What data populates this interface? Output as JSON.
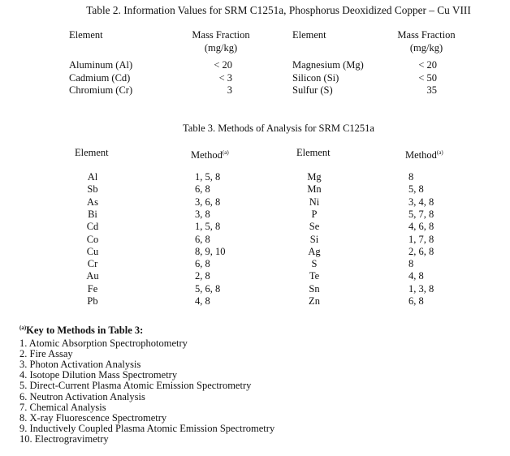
{
  "table2": {
    "title": "Table 2.  Information Values for SRM C1251a, Phosphorus Deoxidized Copper – Cu VIII",
    "col_element": "Element",
    "col_mass": "Mass Fraction",
    "col_unit": "(mg/kg)",
    "left": [
      {
        "element": "Aluminum (Al)",
        "value": "< 20"
      },
      {
        "element": "Cadmium (Cd)",
        "value": "< 3"
      },
      {
        "element": "Chromium (Cr)",
        "value": "3"
      }
    ],
    "right": [
      {
        "element": "Magnesium (Mg)",
        "value": "< 20"
      },
      {
        "element": "Silicon (Si)",
        "value": "< 50"
      },
      {
        "element": "Sulfur (S)",
        "value": "35"
      }
    ]
  },
  "table3": {
    "title": "Table 3.  Methods of Analysis for SRM C1251a",
    "col_element": "Element",
    "col_method": "Method",
    "footnote_mark": "(a)",
    "left": [
      [
        "Al",
        "1, 5, 8"
      ],
      [
        "Sb",
        "6, 8"
      ],
      [
        "As",
        "3, 6, 8"
      ],
      [
        "Bi",
        "3, 8"
      ],
      [
        "Cd",
        "1, 5, 8"
      ],
      [
        "Co",
        "6, 8"
      ],
      [
        "Cu",
        "8, 9, 10"
      ],
      [
        "Cr",
        "6, 8"
      ],
      [
        "Au",
        "2, 8"
      ],
      [
        "Fe",
        "5, 6, 8"
      ],
      [
        "Pb",
        "4, 8"
      ]
    ],
    "right": [
      [
        "Mg",
        "8"
      ],
      [
        "Mn",
        "5, 8"
      ],
      [
        "Ni",
        "3, 4, 8"
      ],
      [
        "P",
        "5, 7, 8"
      ],
      [
        "Se",
        "4, 6, 8"
      ],
      [
        "Si",
        "1, 7, 8"
      ],
      [
        "Ag",
        "2, 6, 8"
      ],
      [
        "S",
        "8"
      ],
      [
        "Te",
        "4, 8"
      ],
      [
        "Sn",
        "1, 3, 8"
      ],
      [
        "Zn",
        "6, 8"
      ]
    ]
  },
  "key": {
    "mark": "(a)",
    "title": "Key to Methods in Table 3:",
    "items": [
      "1.  Atomic Absorption Spectrophotometry",
      "2.  Fire Assay",
      "3.  Photon Activation Analysis",
      "4.  Isotope Dilution Mass Spectrometry",
      "5.  Direct-Current Plasma Atomic Emission Spectrometry",
      "6.  Neutron Activation Analysis",
      "7.  Chemical Analysis",
      "8.  X-ray Fluorescence Spectrometry",
      "9.  Inductively Coupled Plasma Atomic Emission Spectrometry",
      "10. Electrogravimetry"
    ]
  }
}
